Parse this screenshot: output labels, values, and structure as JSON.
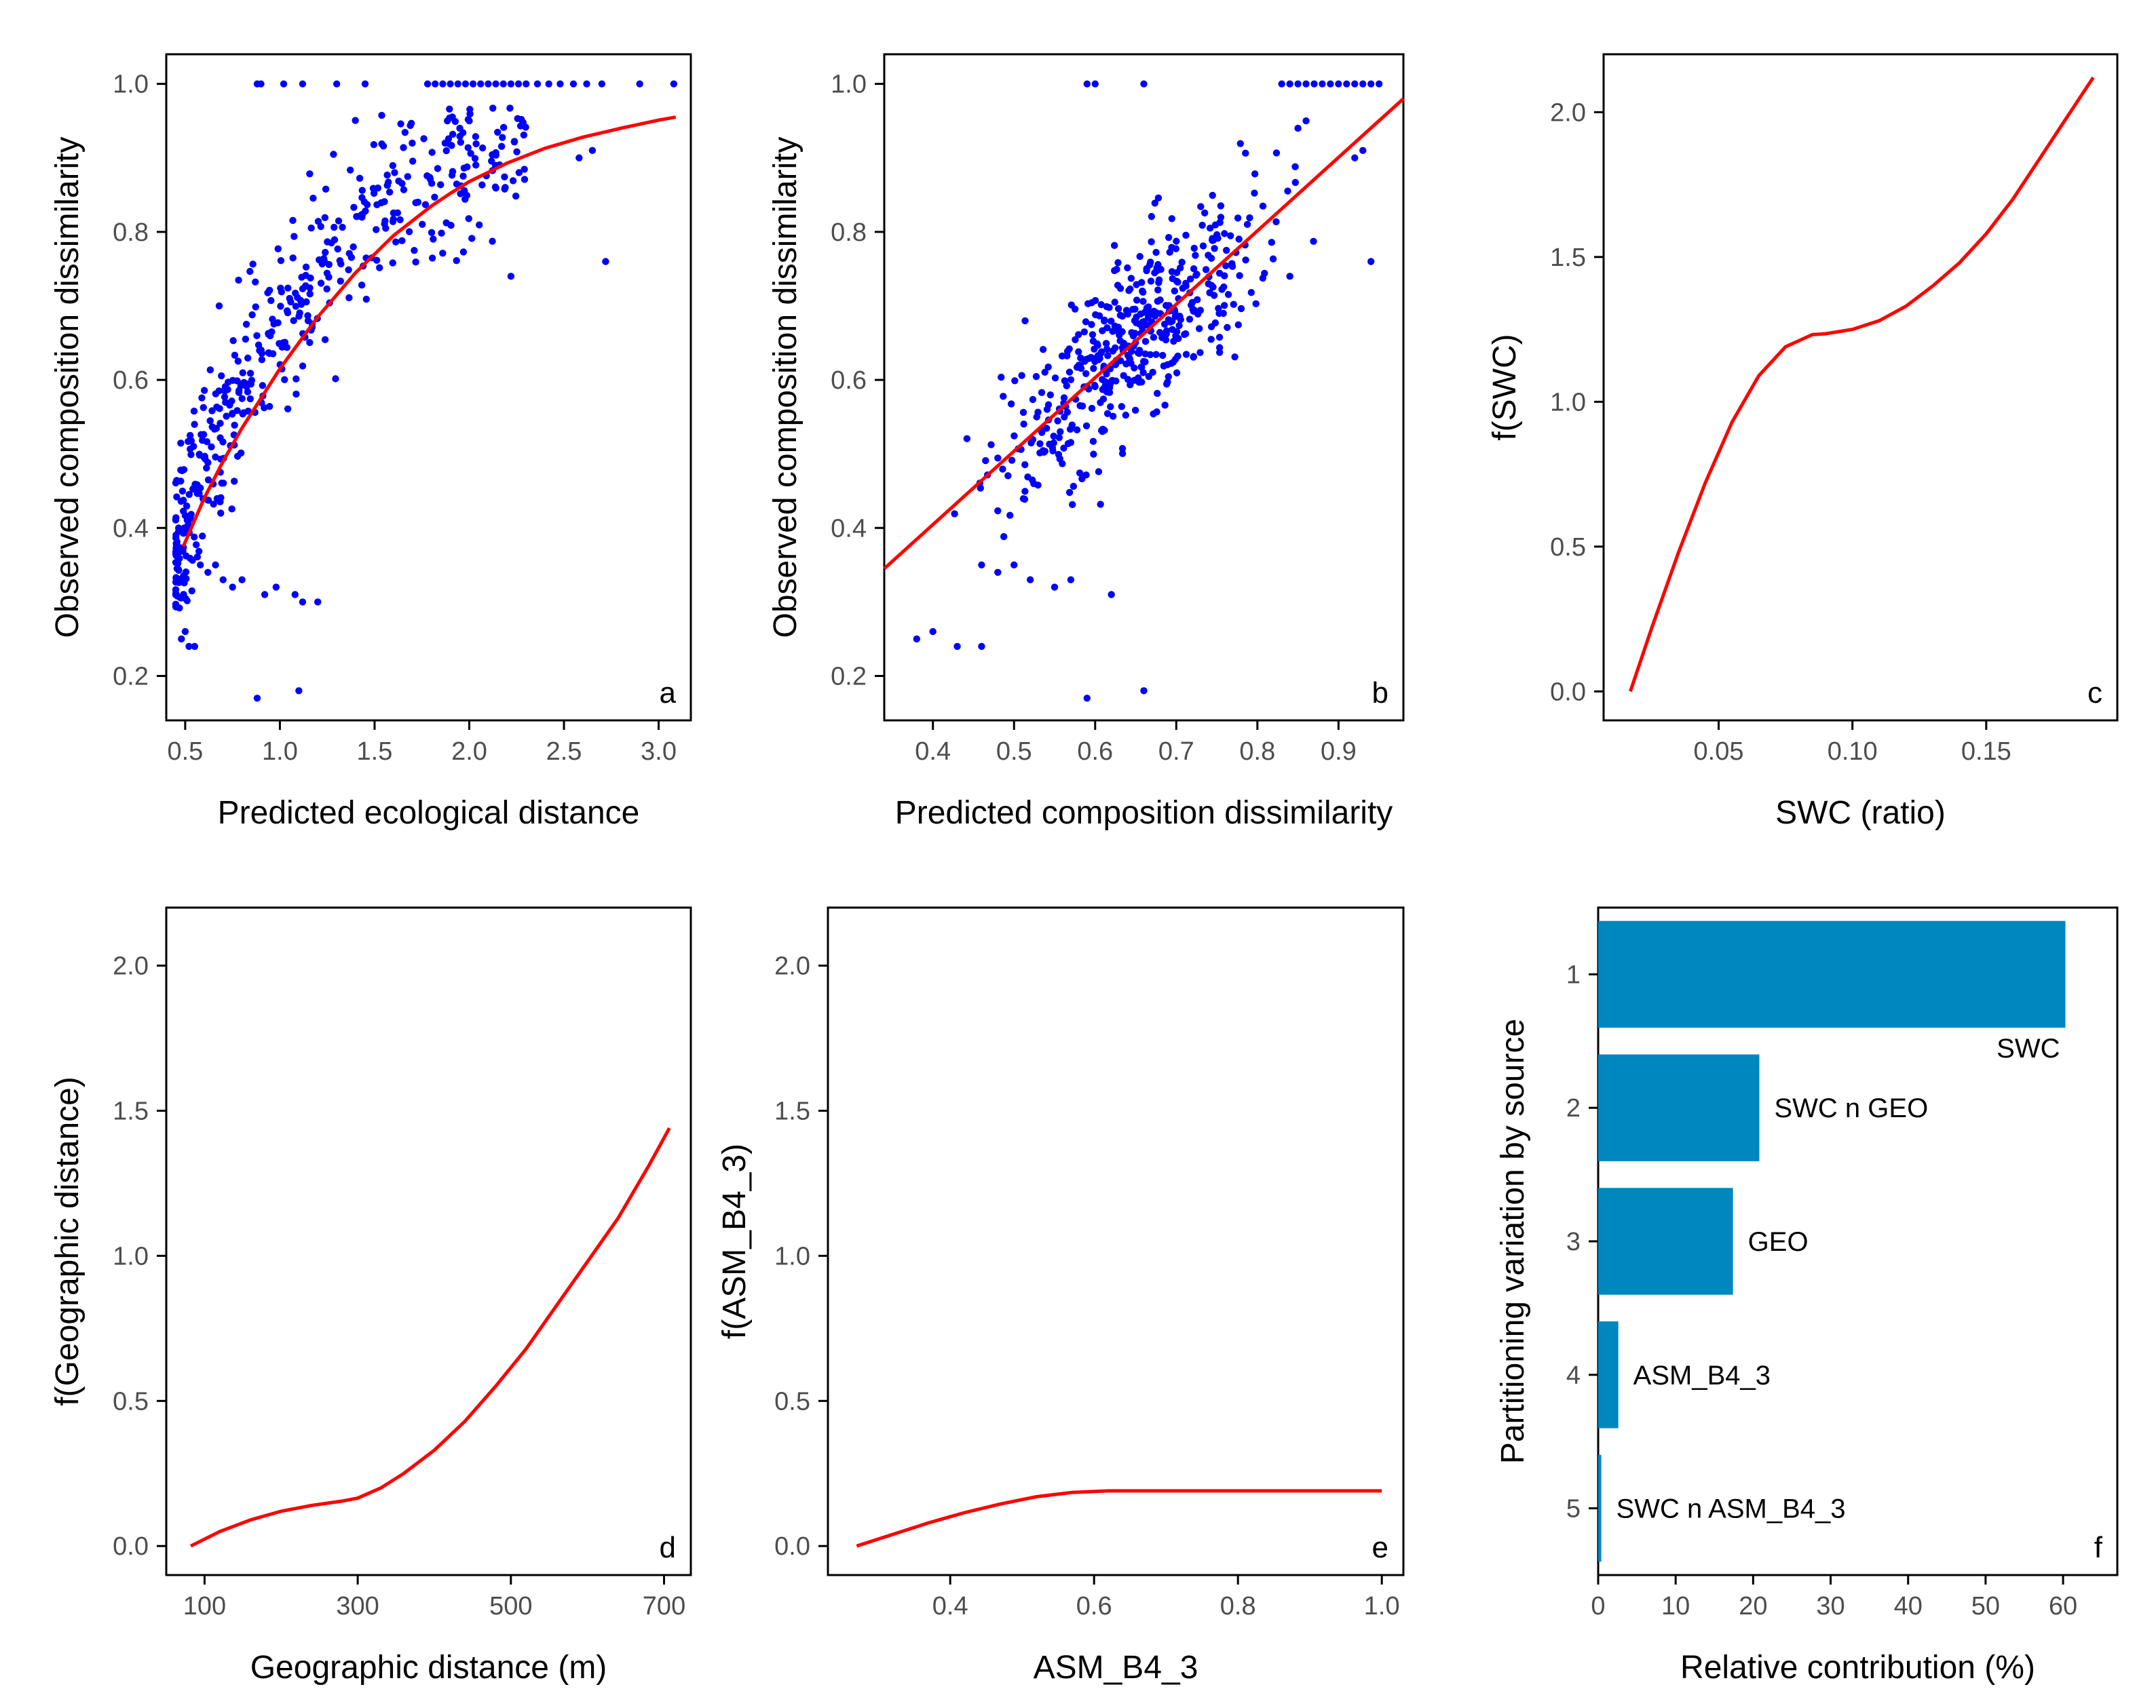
{
  "chart_data": [
    {
      "id": "a",
      "type": "scatter",
      "panel_label": "a",
      "xlabel": "Predicted ecological distance",
      "ylabel": "Observed composition dissimilarity",
      "xlim": [
        0.4,
        3.17
      ],
      "ylim": [
        0.14,
        1.04
      ],
      "xticks": [
        {
          "v": 0.5,
          "label": "0.5"
        },
        {
          "v": 1.0,
          "label": "1.0"
        },
        {
          "v": 1.5,
          "label": "1.5"
        },
        {
          "v": 2.0,
          "label": "2.0"
        },
        {
          "v": 2.5,
          "label": "2.5"
        },
        {
          "v": 3.0,
          "label": "3.0"
        }
      ],
      "yticks": [
        {
          "v": 0.2,
          "label": "0.2"
        },
        {
          "v": 0.4,
          "label": "0.4"
        },
        {
          "v": 0.6,
          "label": "0.6"
        },
        {
          "v": 0.8,
          "label": "0.8"
        },
        {
          "v": 1.0,
          "label": "1.0"
        }
      ],
      "points": [
        [
          0.88,
          1.0
        ],
        [
          0.9,
          1.0
        ],
        [
          1.02,
          1.0
        ],
        [
          1.12,
          1.0
        ],
        [
          1.3,
          1.0
        ],
        [
          1.45,
          1.0
        ],
        [
          1.78,
          1.0
        ],
        [
          1.82,
          1.0
        ],
        [
          1.86,
          1.0
        ],
        [
          1.9,
          1.0
        ],
        [
          1.94,
          1.0
        ],
        [
          1.98,
          1.0
        ],
        [
          2.02,
          1.0
        ],
        [
          2.06,
          1.0
        ],
        [
          2.1,
          1.0
        ],
        [
          2.14,
          1.0
        ],
        [
          2.18,
          1.0
        ],
        [
          2.22,
          1.0
        ],
        [
          2.26,
          1.0
        ],
        [
          2.3,
          1.0
        ],
        [
          2.36,
          1.0
        ],
        [
          2.42,
          1.0
        ],
        [
          2.48,
          1.0
        ],
        [
          2.55,
          1.0
        ],
        [
          2.62,
          1.0
        ],
        [
          2.7,
          1.0
        ],
        [
          2.9,
          1.0
        ],
        [
          3.08,
          1.0
        ],
        [
          0.88,
          0.17
        ],
        [
          1.1,
          0.18
        ],
        [
          0.52,
          0.24
        ],
        [
          0.55,
          0.24
        ],
        [
          0.5,
          0.26
        ],
        [
          0.48,
          0.25
        ],
        [
          2.72,
          0.76
        ],
        [
          2.22,
          0.74
        ],
        [
          2.65,
          0.91
        ],
        [
          2.58,
          0.9
        ],
        [
          2.0,
          0.95
        ],
        [
          1.95,
          0.94
        ],
        [
          1.2,
          0.3
        ],
        [
          0.62,
          0.34
        ],
        [
          0.58,
          0.35
        ],
        [
          0.66,
          0.35
        ],
        [
          0.7,
          0.33
        ],
        [
          0.75,
          0.32
        ],
        [
          0.8,
          0.33
        ],
        [
          0.92,
          0.31
        ],
        [
          0.98,
          0.32
        ],
        [
          1.08,
          0.31
        ],
        [
          1.12,
          0.3
        ]
      ],
      "scatter_seed": {
        "n": 470,
        "x_mode": 0.8,
        "x_min": 0.45,
        "x_max": 2.3
      },
      "curve_x": [
        0.49,
        0.6,
        0.7,
        0.8,
        0.9,
        1.0,
        1.1,
        1.2,
        1.3,
        1.4,
        1.5,
        1.6,
        1.7,
        1.8,
        1.9,
        2.0,
        2.2,
        2.4,
        2.6,
        2.8,
        3.0,
        3.09
      ],
      "curve_y": [
        0.375,
        0.44,
        0.49,
        0.535,
        0.575,
        0.615,
        0.65,
        0.685,
        0.715,
        0.745,
        0.77,
        0.795,
        0.815,
        0.835,
        0.852,
        0.868,
        0.893,
        0.913,
        0.928,
        0.94,
        0.951,
        0.955
      ]
    },
    {
      "id": "b",
      "type": "scatter",
      "panel_label": "b",
      "xlabel": "Predicted composition dissimilarity",
      "ylabel": "Observed composition dissimilarity",
      "xlim": [
        0.34,
        0.98
      ],
      "ylim": [
        0.14,
        1.04
      ],
      "xticks": [
        {
          "v": 0.4,
          "label": "0.4"
        },
        {
          "v": 0.5,
          "label": "0.5"
        },
        {
          "v": 0.6,
          "label": "0.6"
        },
        {
          "v": 0.7,
          "label": "0.7"
        },
        {
          "v": 0.8,
          "label": "0.8"
        },
        {
          "v": 0.9,
          "label": "0.9"
        }
      ],
      "yticks": [
        {
          "v": 0.2,
          "label": "0.2"
        },
        {
          "v": 0.4,
          "label": "0.4"
        },
        {
          "v": 0.6,
          "label": "0.6"
        },
        {
          "v": 0.8,
          "label": "0.8"
        },
        {
          "v": 1.0,
          "label": "1.0"
        }
      ],
      "points": [
        [
          0.59,
          1.0
        ],
        [
          0.6,
          1.0
        ],
        [
          0.66,
          1.0
        ],
        [
          0.83,
          1.0
        ],
        [
          0.84,
          1.0
        ],
        [
          0.85,
          1.0
        ],
        [
          0.86,
          1.0
        ],
        [
          0.87,
          1.0
        ],
        [
          0.88,
          1.0
        ],
        [
          0.89,
          1.0
        ],
        [
          0.9,
          1.0
        ],
        [
          0.91,
          1.0
        ],
        [
          0.92,
          1.0
        ],
        [
          0.93,
          1.0
        ],
        [
          0.94,
          1.0
        ],
        [
          0.95,
          1.0
        ],
        [
          0.59,
          0.17
        ],
        [
          0.66,
          0.18
        ],
        [
          0.43,
          0.24
        ],
        [
          0.46,
          0.24
        ],
        [
          0.4,
          0.26
        ],
        [
          0.38,
          0.25
        ],
        [
          0.94,
          0.76
        ],
        [
          0.84,
          0.74
        ],
        [
          0.93,
          0.91
        ],
        [
          0.92,
          0.9
        ],
        [
          0.86,
          0.95
        ],
        [
          0.85,
          0.94
        ],
        [
          0.62,
          0.31
        ],
        [
          0.48,
          0.34
        ],
        [
          0.46,
          0.35
        ],
        [
          0.5,
          0.35
        ],
        [
          0.52,
          0.33
        ],
        [
          0.55,
          0.32
        ],
        [
          0.57,
          0.33
        ]
      ],
      "scatter_seed": {
        "n": 470,
        "x_min": 0.37,
        "x_max": 0.94
      },
      "line_x": [
        0.34,
        0.98
      ],
      "line_y": [
        0.345,
        0.98
      ]
    },
    {
      "id": "c",
      "type": "line",
      "panel_label": "c",
      "xlabel": "SWC (ratio)",
      "ylabel": "f(SWC)",
      "xlim": [
        0.007,
        0.199
      ],
      "ylim": [
        -0.1,
        2.2
      ],
      "xticks": [
        {
          "v": 0.05,
          "label": "0.05"
        },
        {
          "v": 0.1,
          "label": "0.10"
        },
        {
          "v": 0.15,
          "label": "0.15"
        }
      ],
      "yticks": [
        {
          "v": 0.0,
          "label": "0.0"
        },
        {
          "v": 0.5,
          "label": "0.5"
        },
        {
          "v": 1.0,
          "label": "1.0"
        },
        {
          "v": 1.5,
          "label": "1.5"
        },
        {
          "v": 2.0,
          "label": "2.0"
        }
      ],
      "x": [
        0.017,
        0.025,
        0.035,
        0.045,
        0.055,
        0.065,
        0.075,
        0.085,
        0.09,
        0.1,
        0.11,
        0.12,
        0.13,
        0.14,
        0.15,
        0.16,
        0.17,
        0.18,
        0.19
      ],
      "y": [
        0.0,
        0.22,
        0.48,
        0.72,
        0.93,
        1.09,
        1.19,
        1.232,
        1.235,
        1.25,
        1.28,
        1.33,
        1.4,
        1.48,
        1.58,
        1.7,
        1.84,
        1.98,
        2.12
      ]
    },
    {
      "id": "d",
      "type": "line",
      "panel_label": "d",
      "xlabel": "Geographic distance (m)",
      "ylabel": "f(Geographic distance)",
      "xlim": [
        50,
        735
      ],
      "ylim": [
        -0.1,
        2.2
      ],
      "xticks": [
        {
          "v": 100,
          "label": "100"
        },
        {
          "v": 300,
          "label": "300"
        },
        {
          "v": 500,
          "label": "500"
        },
        {
          "v": 700,
          "label": "700"
        }
      ],
      "yticks": [
        {
          "v": 0.0,
          "label": "0.0"
        },
        {
          "v": 0.5,
          "label": "0.5"
        },
        {
          "v": 1.0,
          "label": "1.0"
        },
        {
          "v": 1.5,
          "label": "1.5"
        },
        {
          "v": 2.0,
          "label": "2.0"
        }
      ],
      "x": [
        82,
        120,
        160,
        200,
        240,
        280,
        300,
        330,
        360,
        400,
        440,
        480,
        520,
        560,
        600,
        640,
        680,
        707
      ],
      "y": [
        0.0,
        0.05,
        0.09,
        0.12,
        0.14,
        0.155,
        0.165,
        0.2,
        0.25,
        0.33,
        0.43,
        0.55,
        0.68,
        0.83,
        0.98,
        1.13,
        1.31,
        1.44
      ]
    },
    {
      "id": "e",
      "type": "line",
      "panel_label": "e",
      "xlabel": "ASM_B4_3",
      "ylabel": "f(ASM_B4_3)",
      "xlim": [
        0.23,
        1.03
      ],
      "ylim": [
        -0.1,
        2.2
      ],
      "xticks": [
        {
          "v": 0.4,
          "label": "0.4"
        },
        {
          "v": 0.6,
          "label": "0.6"
        },
        {
          "v": 0.8,
          "label": "0.8"
        },
        {
          "v": 1.0,
          "label": "1.0"
        }
      ],
      "yticks": [
        {
          "v": 0.0,
          "label": "0.0"
        },
        {
          "v": 0.5,
          "label": "0.5"
        },
        {
          "v": 1.0,
          "label": "1.0"
        },
        {
          "v": 1.5,
          "label": "1.5"
        },
        {
          "v": 2.0,
          "label": "2.0"
        }
      ],
      "x": [
        0.27,
        0.32,
        0.37,
        0.42,
        0.47,
        0.52,
        0.57,
        0.62,
        0.7,
        0.8,
        0.9,
        1.0
      ],
      "y": [
        0.0,
        0.04,
        0.08,
        0.115,
        0.145,
        0.17,
        0.185,
        0.19,
        0.19,
        0.19,
        0.19,
        0.19
      ]
    },
    {
      "id": "f",
      "type": "bar",
      "orientation": "horizontal",
      "panel_label": "f",
      "xlabel": "Relative contribution (%)",
      "ylabel": "Partitioning variation by source",
      "xlim": [
        0,
        67
      ],
      "xticks": [
        {
          "v": 0,
          "label": "0"
        },
        {
          "v": 10,
          "label": "10"
        },
        {
          "v": 20,
          "label": "20"
        },
        {
          "v": 30,
          "label": "30"
        },
        {
          "v": 40,
          "label": "40"
        },
        {
          "v": 50,
          "label": "50"
        },
        {
          "v": 60,
          "label": "60"
        }
      ],
      "categories": [
        "1",
        "2",
        "3",
        "4",
        "5"
      ],
      "values": [
        60.3,
        20.8,
        17.4,
        2.6,
        0.4
      ],
      "bar_labels": [
        "SWC",
        "SWC n GEO",
        "GEO",
        "ASM_B4_3",
        "SWC n ASM_B4_3"
      ],
      "label_position": [
        "below-end",
        "right",
        "right",
        "right",
        "right"
      ],
      "bar_color": "#0087BF"
    }
  ],
  "colors": {
    "points": "#0000FF",
    "curve": "#FF0000",
    "axis": "#000000",
    "tick_text": "#4D4D4D",
    "bar": "#0087BF"
  }
}
